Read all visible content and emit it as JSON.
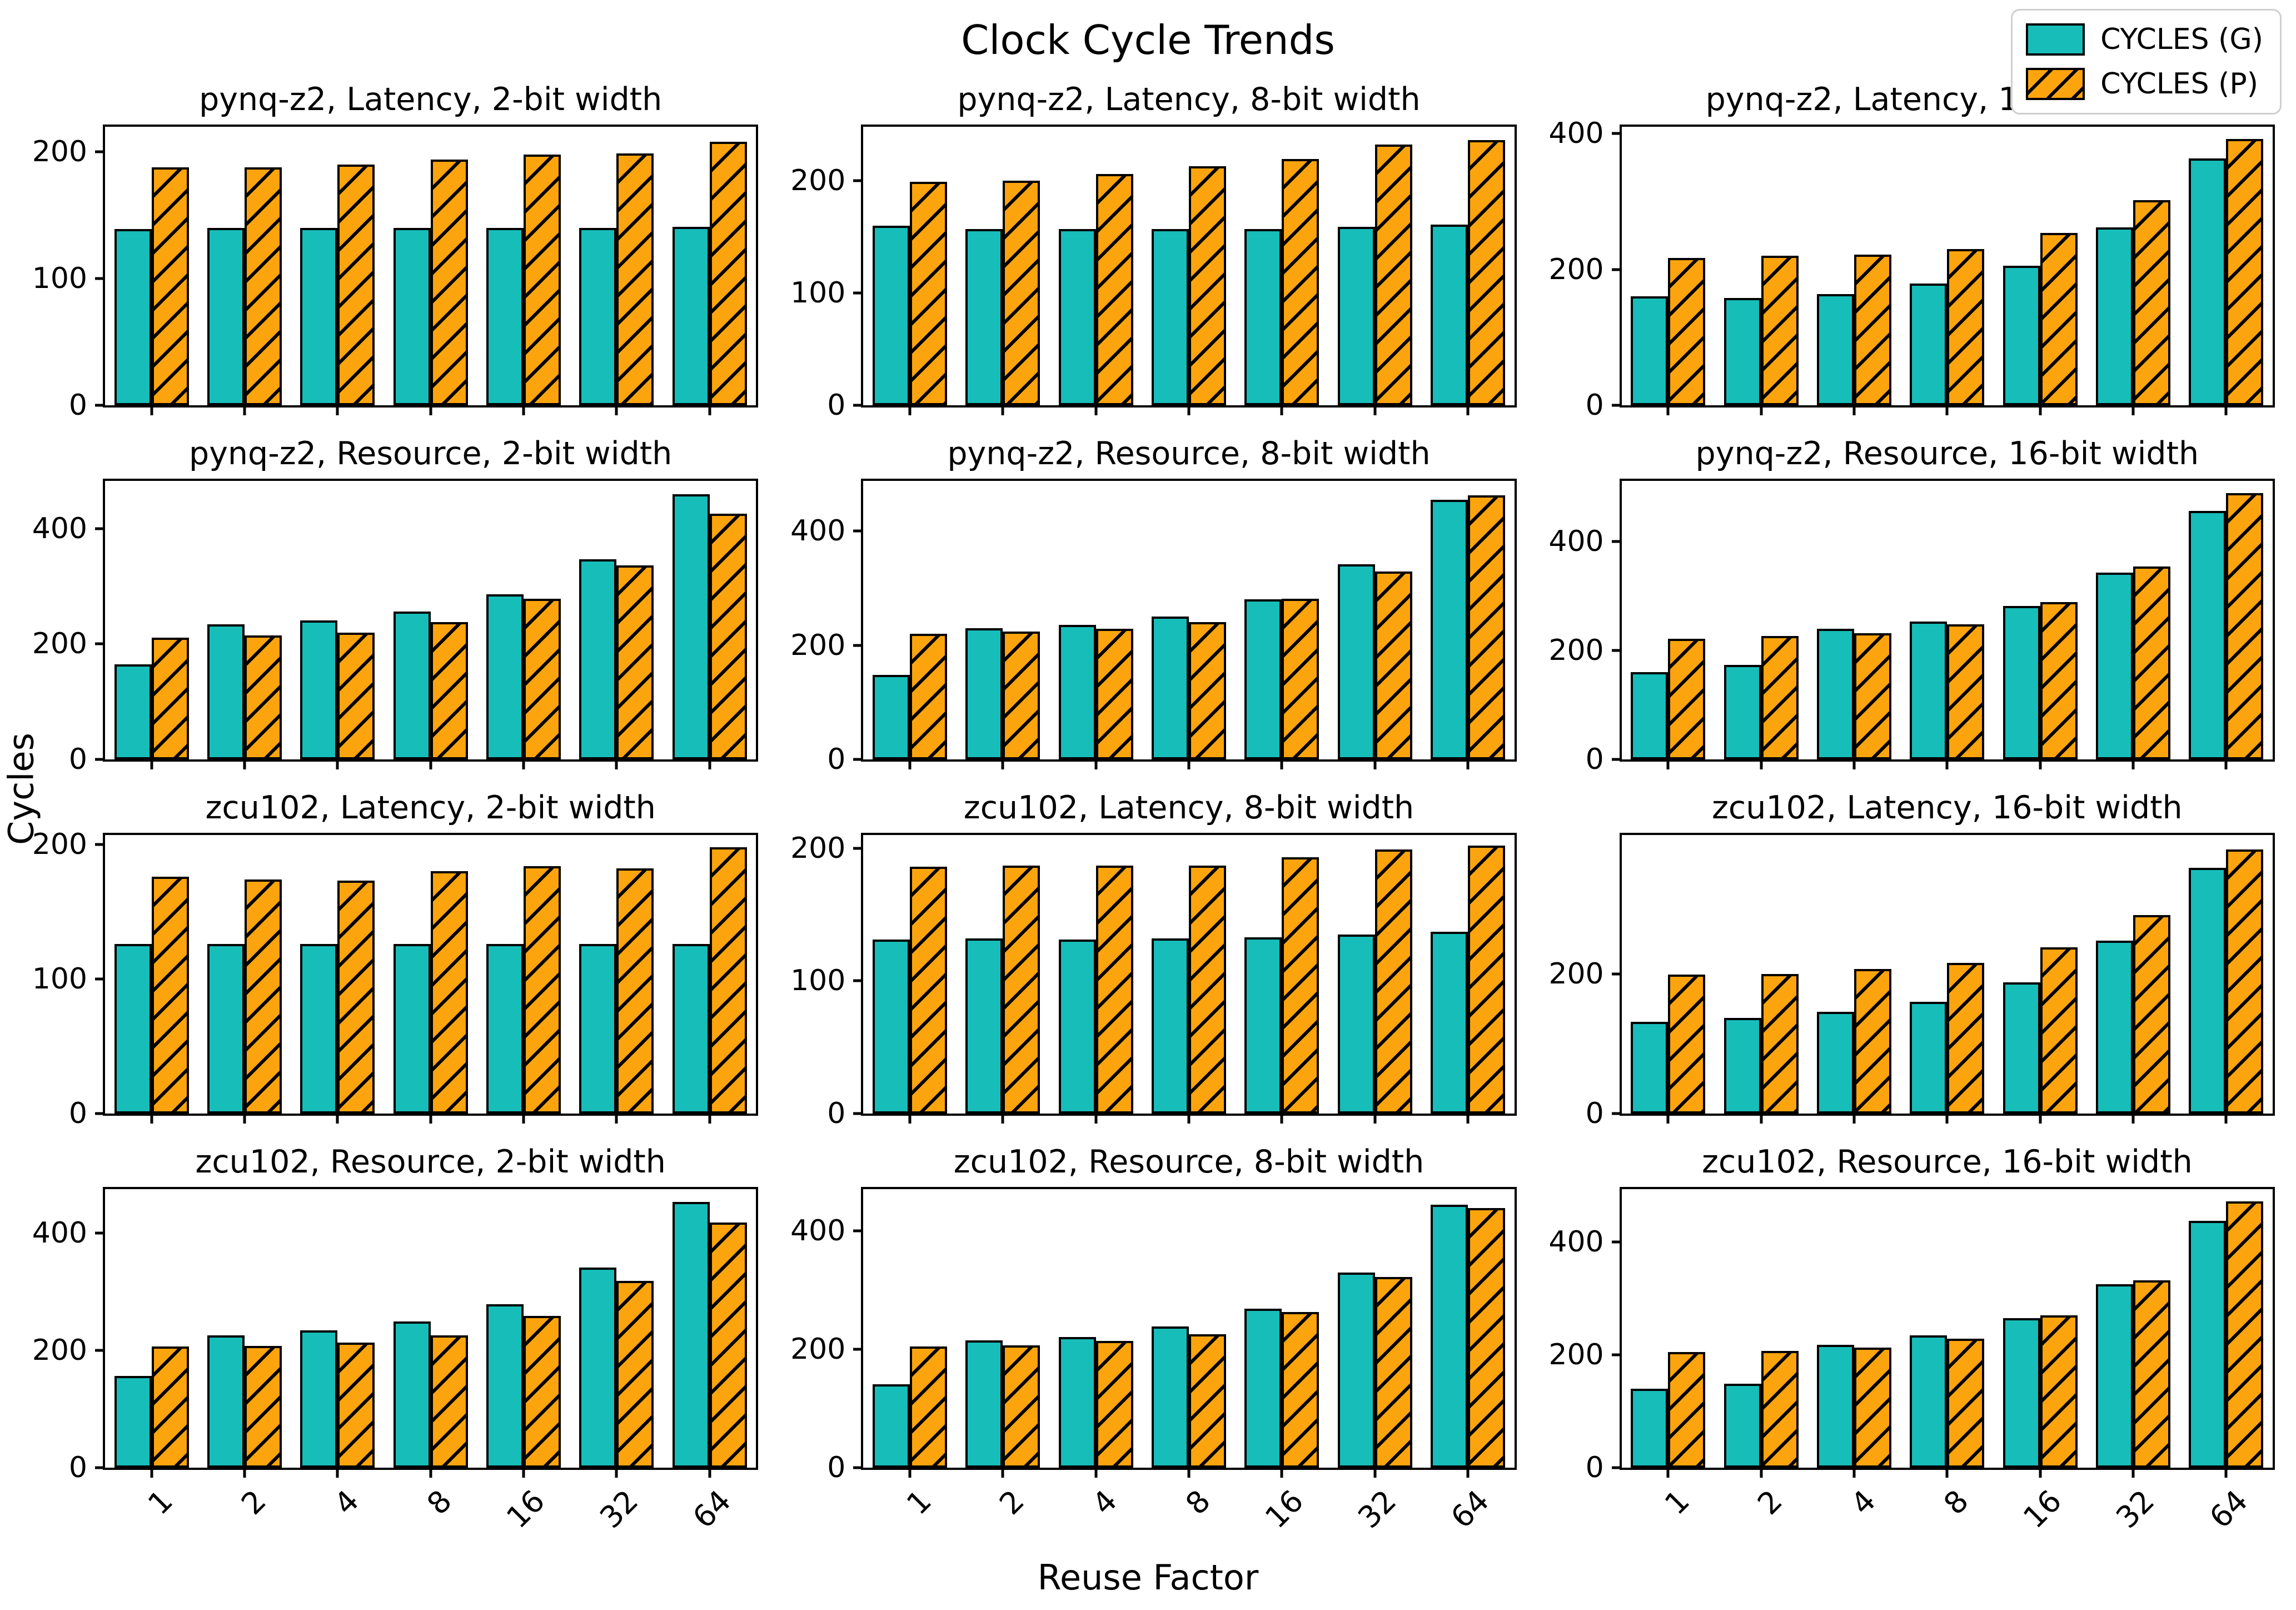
{
  "figure": {
    "title": "Clock Cycle Trends",
    "ylabel": "Cycles",
    "xlabel": "Reuse Factor"
  },
  "legend": {
    "items": [
      {
        "label": "CYCLES (G)",
        "swatch": "teal-solid-swatch"
      },
      {
        "label": "CYCLES (P)",
        "swatch": "orange-hatched-swatch"
      }
    ]
  },
  "colors": {
    "g_fill": "#17bdb9",
    "p_fill": "#fca40d",
    "edge": "#000000",
    "legend_border": "#cfcfcf"
  },
  "chart_data": [
    {
      "type": "bar",
      "title": "pynq-z2, Latency, 2-bit width",
      "categories": [
        "1",
        "2",
        "4",
        "8",
        "16",
        "32",
        "64"
      ],
      "series": [
        {
          "name": "CYCLES (G)",
          "values": [
            139,
            140,
            140,
            140,
            140,
            140,
            141
          ]
        },
        {
          "name": "CYCLES (P)",
          "values": [
            188,
            188,
            190,
            194,
            198,
            199,
            208
          ]
        }
      ],
      "yticks": [
        0,
        100,
        200
      ],
      "ylim": [
        0,
        220
      ],
      "show_xticklabels": false
    },
    {
      "type": "bar",
      "title": "pynq-z2, Latency, 8-bit width",
      "categories": [
        "1",
        "2",
        "4",
        "8",
        "16",
        "32",
        "64"
      ],
      "series": [
        {
          "name": "CYCLES (G)",
          "values": [
            160,
            157,
            157,
            157,
            157,
            159,
            161
          ]
        },
        {
          "name": "CYCLES (P)",
          "values": [
            199,
            200,
            206,
            213,
            219,
            232,
            236
          ]
        }
      ],
      "yticks": [
        0,
        100,
        200
      ],
      "ylim": [
        0,
        248
      ],
      "show_xticklabels": false
    },
    {
      "type": "bar",
      "title": "pynq-z2, Latency, 16-bit width",
      "categories": [
        "1",
        "2",
        "4",
        "8",
        "16",
        "32",
        "64"
      ],
      "series": [
        {
          "name": "CYCLES (G)",
          "values": [
            160,
            158,
            164,
            179,
            205,
            262,
            363
          ]
        },
        {
          "name": "CYCLES (P)",
          "values": [
            217,
            220,
            222,
            230,
            254,
            302,
            392
          ]
        }
      ],
      "yticks": [
        0,
        200,
        400
      ],
      "ylim": [
        0,
        410
      ],
      "show_xticklabels": false
    },
    {
      "type": "bar",
      "title": "pynq-z2, Resource, 2-bit width",
      "categories": [
        "1",
        "2",
        "4",
        "8",
        "16",
        "32",
        "64"
      ],
      "series": [
        {
          "name": "CYCLES (G)",
          "values": [
            165,
            234,
            241,
            256,
            286,
            347,
            460
          ]
        },
        {
          "name": "CYCLES (P)",
          "values": [
            211,
            215,
            220,
            238,
            279,
            336,
            426
          ]
        }
      ],
      "yticks": [
        0,
        200,
        400
      ],
      "ylim": [
        0,
        483
      ],
      "show_xticklabels": false
    },
    {
      "type": "bar",
      "title": "pynq-z2, Resource, 8-bit width",
      "categories": [
        "1",
        "2",
        "4",
        "8",
        "16",
        "32",
        "64"
      ],
      "series": [
        {
          "name": "CYCLES (G)",
          "values": [
            148,
            230,
            236,
            250,
            280,
            342,
            455
          ]
        },
        {
          "name": "CYCLES (P)",
          "values": [
            220,
            224,
            229,
            241,
            281,
            329,
            463
          ]
        }
      ],
      "yticks": [
        0,
        200,
        400
      ],
      "ylim": [
        0,
        488
      ],
      "show_xticklabels": false
    },
    {
      "type": "bar",
      "title": "pynq-z2, Resource, 16-bit width",
      "categories": [
        "1",
        "2",
        "4",
        "8",
        "16",
        "32",
        "64"
      ],
      "series": [
        {
          "name": "CYCLES (G)",
          "values": [
            160,
            173,
            240,
            253,
            281,
            343,
            456
          ]
        },
        {
          "name": "CYCLES (P)",
          "values": [
            221,
            226,
            231,
            248,
            289,
            354,
            488
          ]
        }
      ],
      "yticks": [
        0,
        200,
        400
      ],
      "ylim": [
        0,
        511
      ],
      "show_xticklabels": false
    },
    {
      "type": "bar",
      "title": "zcu102, Latency, 2-bit width",
      "categories": [
        "1",
        "2",
        "4",
        "8",
        "16",
        "32",
        "64"
      ],
      "series": [
        {
          "name": "CYCLES (G)",
          "values": [
            126,
            126,
            126,
            126,
            126,
            126,
            126
          ]
        },
        {
          "name": "CYCLES (P)",
          "values": [
            176,
            174,
            173,
            180,
            184,
            182,
            198
          ]
        }
      ],
      "yticks": [
        0,
        100,
        200
      ],
      "ylim": [
        0,
        207
      ],
      "show_xticklabels": false
    },
    {
      "type": "bar",
      "title": "zcu102, Latency, 8-bit width",
      "categories": [
        "1",
        "2",
        "4",
        "8",
        "16",
        "32",
        "64"
      ],
      "series": [
        {
          "name": "CYCLES (G)",
          "values": [
            131,
            132,
            131,
            132,
            133,
            135,
            137
          ]
        },
        {
          "name": "CYCLES (P)",
          "values": [
            186,
            187,
            187,
            187,
            193,
            199,
            202
          ]
        }
      ],
      "yticks": [
        0,
        100,
        200
      ],
      "ylim": [
        0,
        210
      ],
      "show_xticklabels": false
    },
    {
      "type": "bar",
      "title": "zcu102, Latency, 16-bit width",
      "categories": [
        "1",
        "2",
        "4",
        "8",
        "16",
        "32",
        "64"
      ],
      "series": [
        {
          "name": "CYCLES (G)",
          "values": [
            131,
            137,
            146,
            160,
            188,
            248,
            352
          ]
        },
        {
          "name": "CYCLES (P)",
          "values": [
            199,
            200,
            207,
            216,
            238,
            284,
            378
          ]
        }
      ],
      "yticks": [
        0,
        200
      ],
      "ylim": [
        0,
        399
      ],
      "show_xticklabels": false
    },
    {
      "type": "bar",
      "title": "zcu102, Resource, 2-bit width",
      "categories": [
        "1",
        "2",
        "4",
        "8",
        "16",
        "32",
        "64"
      ],
      "series": [
        {
          "name": "CYCLES (G)",
          "values": [
            156,
            226,
            234,
            249,
            279,
            341,
            453
          ]
        },
        {
          "name": "CYCLES (P)",
          "values": [
            207,
            208,
            213,
            226,
            259,
            318,
            418
          ]
        }
      ],
      "yticks": [
        0,
        200,
        400
      ],
      "ylim": [
        0,
        475
      ],
      "show_xticklabels": true
    },
    {
      "type": "bar",
      "title": "zcu102, Resource, 8-bit width",
      "categories": [
        "1",
        "2",
        "4",
        "8",
        "16",
        "32",
        "64"
      ],
      "series": [
        {
          "name": "CYCLES (G)",
          "values": [
            141,
            215,
            221,
            239,
            269,
            330,
            445
          ]
        },
        {
          "name": "CYCLES (P)",
          "values": [
            205,
            207,
            214,
            226,
            263,
            322,
            439
          ]
        }
      ],
      "yticks": [
        0,
        200,
        400
      ],
      "ylim": [
        0,
        471
      ],
      "show_xticklabels": true
    },
    {
      "type": "bar",
      "title": "zcu102, Resource, 16-bit width",
      "categories": [
        "1",
        "2",
        "4",
        "8",
        "16",
        "32",
        "64"
      ],
      "series": [
        {
          "name": "CYCLES (G)",
          "values": [
            140,
            149,
            218,
            235,
            265,
            325,
            438
          ]
        },
        {
          "name": "CYCLES (P)",
          "values": [
            205,
            207,
            213,
            229,
            270,
            332,
            472
          ]
        }
      ],
      "yticks": [
        0,
        200,
        400
      ],
      "ylim": [
        0,
        494
      ],
      "show_xticklabels": true
    }
  ]
}
